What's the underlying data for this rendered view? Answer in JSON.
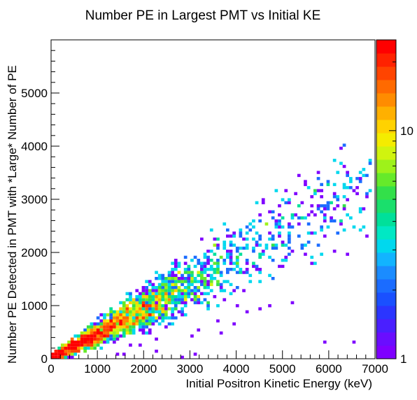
{
  "chart_data": {
    "type": "heatmap",
    "title": "Number PE in Largest PMT vs Initial KE",
    "xlabel": "Initial Positron Kinetic Energy (keV)",
    "ylabel": "Number PE Detected in PMT with *Large* Number of PE",
    "xlim": [
      0,
      7000
    ],
    "ylim": [
      0,
      6000
    ],
    "x_ticks": [
      "0",
      "1000",
      "2000",
      "3000",
      "4000",
      "5000",
      "6000",
      "7000"
    ],
    "y_ticks": [
      "0",
      "1000",
      "2000",
      "3000",
      "4000",
      "5000"
    ],
    "colorbar": {
      "scale": "log",
      "range": [
        1,
        25
      ],
      "tick_labels": [
        "1",
        "10"
      ],
      "colors": [
        "#7f00ff",
        "#6a0dff",
        "#4a1fff",
        "#2b35ff",
        "#1a50ff",
        "#1b6cff",
        "#1b8cff",
        "#12b4ff",
        "#00d8ee",
        "#00e8c4",
        "#00e09a",
        "#1adf6c",
        "#33e04a",
        "#66ea2a",
        "#9ef21a",
        "#d0f40f",
        "#f4ec00",
        "#ffd200",
        "#ffb000",
        "#ff8c00",
        "#ff6a00",
        "#ff4400",
        "#ff2200",
        "#ff0000"
      ]
    },
    "band": {
      "description_values": "main diagonal ridge: PE ≈ 0.47 × KE",
      "slope_pe_per_kev": 0.47,
      "x_end_kev": 6900,
      "peak_kev": 1400,
      "rows_points": [
        [
          100,
          60
        ],
        [
          300,
          160
        ],
        [
          500,
          250
        ],
        [
          700,
          350
        ],
        [
          900,
          440
        ],
        [
          1100,
          540
        ],
        [
          1300,
          630
        ],
        [
          1500,
          730
        ],
        [
          1700,
          820
        ],
        [
          1900,
          910
        ],
        [
          2100,
          1010
        ],
        [
          2300,
          1100
        ],
        [
          2500,
          1200
        ],
        [
          2700,
          1290
        ],
        [
          2900,
          1380
        ],
        [
          3100,
          1480
        ],
        [
          3300,
          1570
        ],
        [
          3500,
          1670
        ],
        [
          3700,
          1760
        ],
        [
          3900,
          1850
        ],
        [
          4100,
          1950
        ],
        [
          4300,
          2040
        ],
        [
          4500,
          2140
        ],
        [
          4700,
          2230
        ],
        [
          4900,
          2330
        ],
        [
          5100,
          2420
        ],
        [
          5300,
          2510
        ],
        [
          5500,
          2610
        ],
        [
          5700,
          2700
        ],
        [
          5900,
          2800
        ],
        [
          6100,
          2890
        ],
        [
          6300,
          2990
        ],
        [
          6500,
          3080
        ],
        [
          6700,
          3180
        ],
        [
          6900,
          3270
        ]
      ]
    },
    "outliers": [
      [
        1450,
        80
      ],
      [
        1550,
        80
      ],
      [
        1900,
        250
      ],
      [
        2150,
        490
      ],
      [
        2300,
        390
      ],
      [
        2450,
        620
      ],
      [
        2600,
        760
      ],
      [
        2800,
        840
      ],
      [
        3200,
        560
      ],
      [
        3600,
        700
      ],
      [
        4050,
        1000
      ],
      [
        4250,
        900
      ],
      [
        4500,
        920
      ],
      [
        4700,
        1000
      ],
      [
        5200,
        1050
      ],
      [
        5900,
        300
      ],
      [
        6550,
        340
      ],
      [
        3950,
        640
      ],
      [
        1700,
        250
      ],
      [
        2300,
        120
      ],
      [
        3050,
        430
      ],
      [
        3650,
        470
      ],
      [
        2800,
        50
      ],
      [
        3100,
        80
      ]
    ]
  }
}
